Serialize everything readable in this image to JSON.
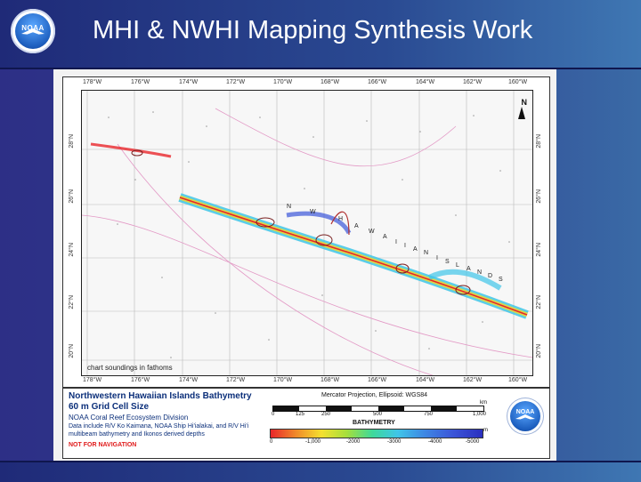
{
  "slide": {
    "title": "MHI & NWHI Mapping Synthesis Work",
    "logo_text": "NOAA",
    "colors": {
      "title_bg": "#2a4a92",
      "slide_bg": "#2e3f8f"
    }
  },
  "map": {
    "longitude_labels": [
      "178°W",
      "176°W",
      "174°W",
      "172°W",
      "170°W",
      "168°W",
      "166°W",
      "164°W",
      "162°W",
      "160°W"
    ],
    "latitude_labels": [
      "28°N",
      "26°N",
      "24°N",
      "22°N",
      "20°N"
    ],
    "north_label": "N",
    "note": "chart soundings in fathoms",
    "chain_letters": [
      "N",
      "W",
      "H",
      "A",
      "W",
      "A",
      "I",
      "I",
      "A",
      "N",
      "I",
      "S",
      "L",
      "A",
      "N",
      "D",
      "S"
    ]
  },
  "legend": {
    "title": "Northwestern Hawaiian Islands Bathymetry",
    "subtitle": "60 m Grid Cell Size",
    "division": "NOAA Coral Reef Ecosystem Division",
    "data_note": "Data include R/V Ko Kaimana, NOAA Ship Hi'ialakai, and R/V Hi'i multibeam bathymetry and Ikonos derived depths",
    "nav_warning": "NOT FOR NAVIGATION",
    "projection": "Mercator Projection, Ellipsoid: WGS84",
    "scale_unit": "km",
    "scale_labels": [
      "0",
      "125",
      "250",
      "500",
      "750",
      "1,000"
    ],
    "bathymetry_title": "BATHYMETRY",
    "depth_unit": "m",
    "depth_labels": [
      "0",
      "-1,000",
      "-2000",
      "-3000",
      "-4000",
      "-5000"
    ],
    "logo_text": "NOAA"
  }
}
